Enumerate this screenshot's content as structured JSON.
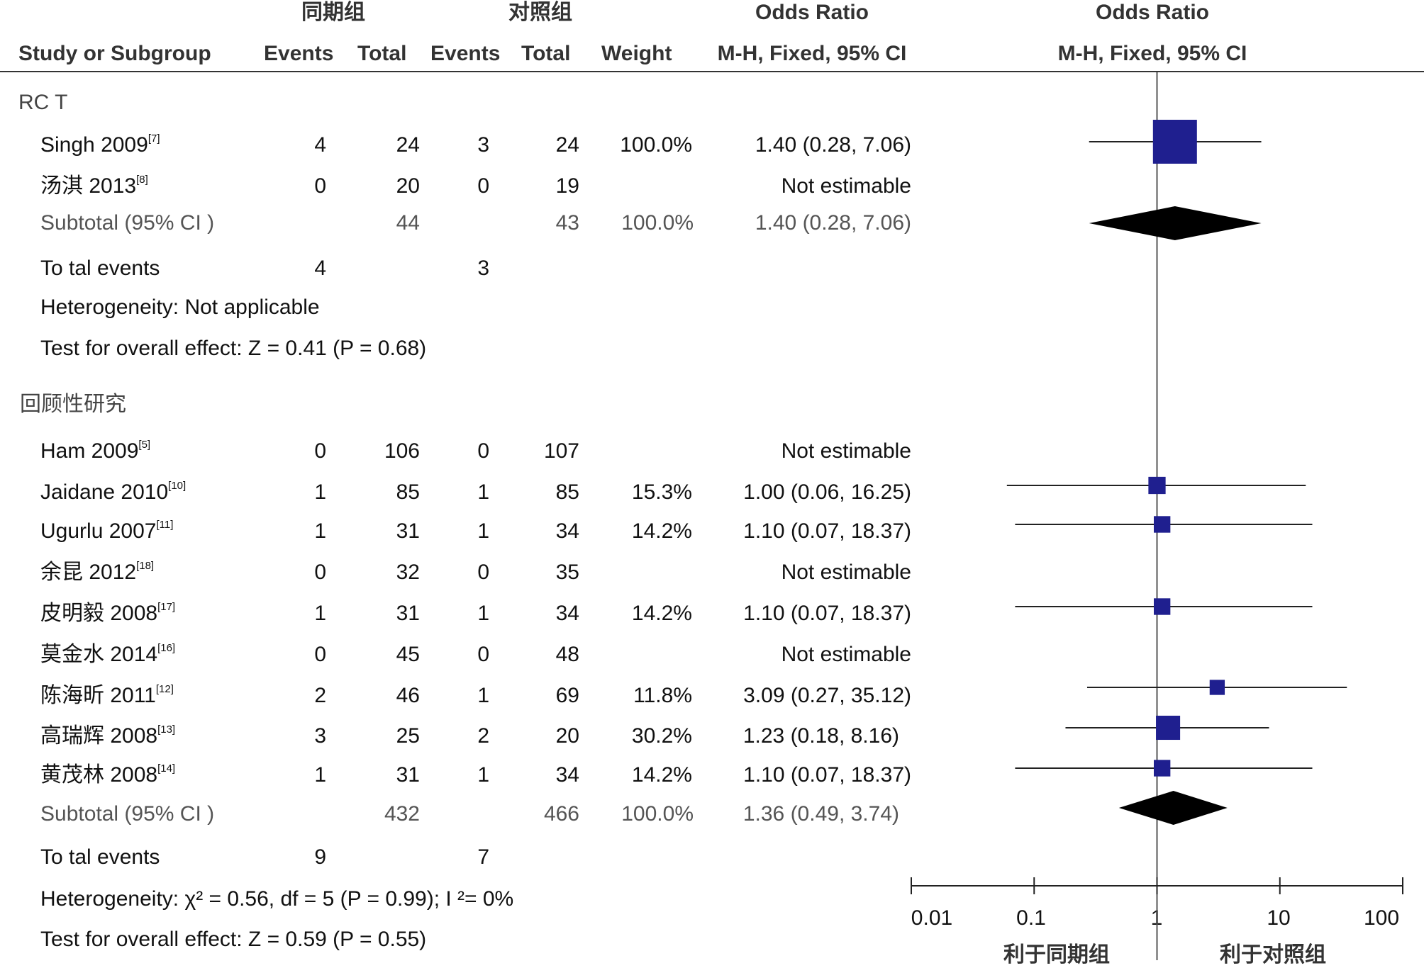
{
  "header": {
    "group_exp": "同期组",
    "group_ctrl": "对照组",
    "or_title_1": "Odds Ratio",
    "or_title_2": "Odds Ratio",
    "col_study": "Study or Subgroup",
    "col_events_1": "Events",
    "col_total_1": "Total",
    "col_events_2": "Events",
    "col_total_2": "Total",
    "col_weight": "Weight",
    "col_method_1": "M-H, Fixed, 95% CI",
    "col_method_2": "M-H, Fixed, 95% CI"
  },
  "groups": [
    {
      "name": "RC T",
      "studies": [
        {
          "study": "Singh 2009",
          "ref": "[7]",
          "e1": "4",
          "t1": "24",
          "e2": "3",
          "t2": "24",
          "weight": "100.0%",
          "ci_text": "1.40 (0.28, 7.06)"
        },
        {
          "study": "汤淇 2013",
          "ref": "[8]",
          "e1": "0",
          "t1": "20",
          "e2": "0",
          "t2": "19",
          "weight": "",
          "ci_text": "Not estimable"
        }
      ],
      "subtotal": {
        "label": "Subtotal (95% CI )",
        "t1": "44",
        "t2": "43",
        "weight": "100.0%",
        "ci_text": "1.40 (0.28, 7.06)"
      },
      "total_events": {
        "label": "To tal events",
        "e1": "4",
        "e2": "3"
      },
      "heterogeneity": "Heterogeneity: Not applicable",
      "overall": "Test for overall effect: Z = 0.41 (P = 0.68)"
    },
    {
      "name": "回顾性研究",
      "studies": [
        {
          "study": "Ham 2009",
          "ref": "[5]",
          "e1": "0",
          "t1": "106",
          "e2": "0",
          "t2": "107",
          "weight": "",
          "ci_text": "Not estimable"
        },
        {
          "study": "Jaidane 2010",
          "ref": "[10]",
          "e1": "1",
          "t1": "85",
          "e2": "1",
          "t2": "85",
          "weight": "15.3%",
          "ci_text": "1.00 (0.06, 16.25)"
        },
        {
          "study": "Ugurlu 2007",
          "ref": "[11]",
          "e1": "1",
          "t1": "31",
          "e2": "1",
          "t2": "34",
          "weight": "14.2%",
          "ci_text": "1.10 (0.07, 18.37)"
        },
        {
          "study": "余昆 2012",
          "ref": "[18]",
          "e1": "0",
          "t1": "32",
          "e2": "0",
          "t2": "35",
          "weight": "",
          "ci_text": "Not estimable"
        },
        {
          "study": "皮明毅 2008",
          "ref": "[17]",
          "e1": "1",
          "t1": "31",
          "e2": "1",
          "t2": "34",
          "weight": "14.2%",
          "ci_text": "1.10 (0.07, 18.37)"
        },
        {
          "study": "莫金水 2014",
          "ref": "[16]",
          "e1": "0",
          "t1": "45",
          "e2": "0",
          "t2": "48",
          "weight": "",
          "ci_text": "Not estimable"
        },
        {
          "study": "陈海昕 2011",
          "ref": "[12]",
          "e1": "2",
          "t1": "46",
          "e2": "1",
          "t2": "69",
          "weight": "11.8%",
          "ci_text": "3.09 (0.27, 35.12)"
        },
        {
          "study": "高瑞辉 2008",
          "ref": "[13]",
          "e1": "3",
          "t1": "25",
          "e2": "2",
          "t2": "20",
          "weight": "30.2%",
          "ci_text": "1.23 (0.18, 8.16)"
        },
        {
          "study": "黄茂林 2008",
          "ref": "[14]",
          "e1": "1",
          "t1": "31",
          "e2": "1",
          "t2": "34",
          "weight": "14.2%",
          "ci_text": "1.10 (0.07, 18.37)"
        }
      ],
      "subtotal": {
        "label": "Subtotal (95% CI )",
        "t1": "432",
        "t2": "466",
        "weight": "100.0%",
        "ci_text": "1.36 (0.49, 3.74)"
      },
      "total_events": {
        "label": "To tal events",
        "e1": "9",
        "e2": "7"
      },
      "heterogeneity": "Heterogeneity:  χ² = 0.56, df = 5 (P = 0.99);  I ²= 0%",
      "overall": "Test for overall effect: Z = 0.59 (P = 0.55)"
    }
  ],
  "axis": {
    "ticks": [
      "0.01",
      "0.1",
      "1",
      "10",
      "100"
    ],
    "favours_left": "利于同期组",
    "favours_right": "利于对照组"
  },
  "chart_data": {
    "type": "forest",
    "scale": "log",
    "xlim": [
      0.01,
      100
    ],
    "null_line": 1,
    "colors": {
      "study": "#1f1f8f",
      "diamond": "#000000",
      "line": "#222222"
    },
    "study_points": [
      {
        "study": "Singh 2009",
        "or": 1.4,
        "lo": 0.28,
        "hi": 7.06,
        "weight": 100.0
      },
      {
        "study": "Jaidane 2010",
        "or": 1.0,
        "lo": 0.06,
        "hi": 16.25,
        "weight": 15.3
      },
      {
        "study": "Ugurlu 2007",
        "or": 1.1,
        "lo": 0.07,
        "hi": 18.37,
        "weight": 14.2
      },
      {
        "study": "皮明毅 2008",
        "or": 1.1,
        "lo": 0.07,
        "hi": 18.37,
        "weight": 14.2
      },
      {
        "study": "陈海昕 2011",
        "or": 3.09,
        "lo": 0.27,
        "hi": 35.12,
        "weight": 11.8
      },
      {
        "study": "高瑞辉 2008",
        "or": 1.23,
        "lo": 0.18,
        "hi": 8.16,
        "weight": 30.2
      },
      {
        "study": "黄茂林 2008",
        "or": 1.1,
        "lo": 0.07,
        "hi": 18.37,
        "weight": 14.2
      }
    ],
    "subtotals": [
      {
        "group": "RC T",
        "or": 1.4,
        "lo": 0.28,
        "hi": 7.06
      },
      {
        "group": "回顾性研究",
        "or": 1.36,
        "lo": 0.49,
        "hi": 3.74
      }
    ]
  }
}
